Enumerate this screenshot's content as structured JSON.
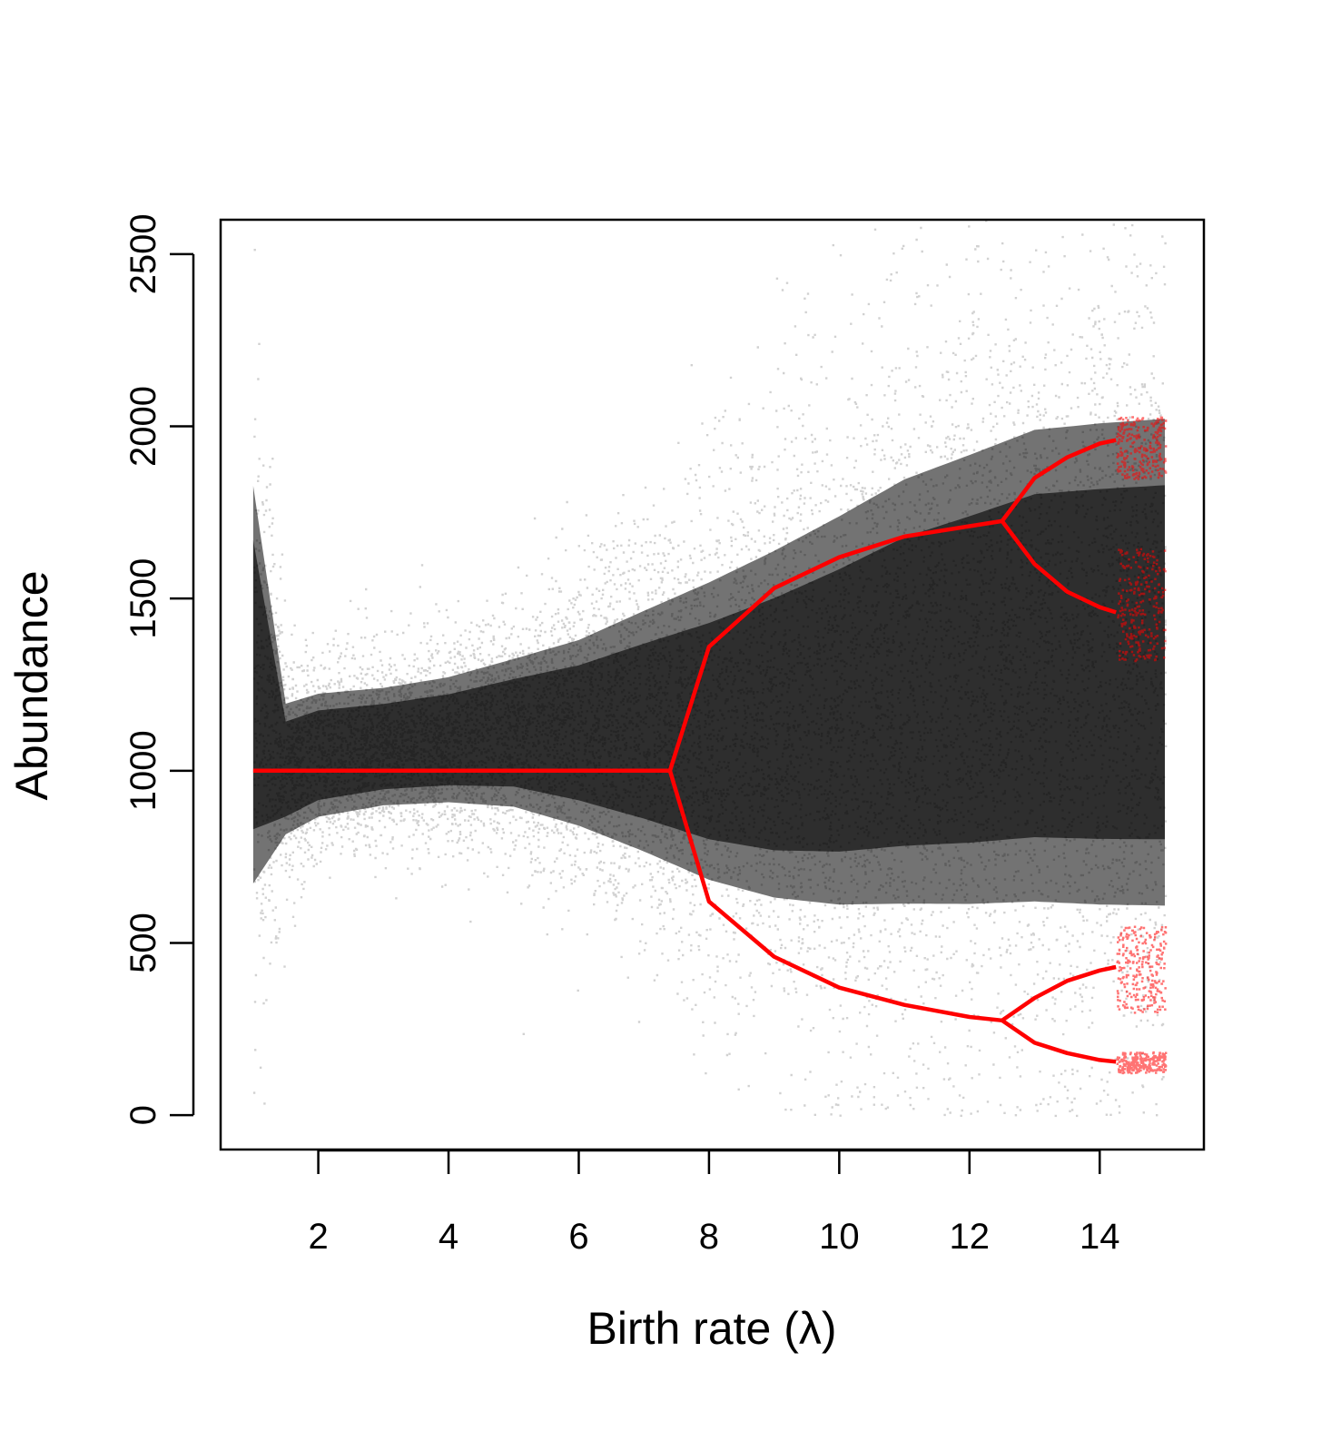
{
  "chart_data": {
    "type": "scatter",
    "title": "",
    "xlabel": "Birth rate (λ)",
    "ylabel": "Abundance",
    "xlim": [
      0.5,
      15.6
    ],
    "ylim": [
      -100,
      2600
    ],
    "x_ticks": [
      2,
      4,
      6,
      8,
      10,
      12,
      14
    ],
    "y_ticks": [
      0,
      500,
      1000,
      1500,
      2000,
      2500
    ],
    "x_tick_labels": [
      "2",
      "4",
      "6",
      "8",
      "10",
      "12",
      "14"
    ],
    "y_tick_labels": [
      "0",
      "500",
      "1000",
      "1500",
      "2000",
      "2500"
    ],
    "grid": false,
    "legend": "none",
    "series": [
      {
        "kind": "stochastic_scatter",
        "color": "#000000",
        "x_range": [
          1,
          15
        ],
        "envelope": {
          "x": [
            1,
            1.5,
            2,
            3,
            4,
            5,
            6,
            7,
            8,
            9,
            10,
            11,
            12,
            13,
            14,
            15
          ],
          "lower": [
            200,
            660,
            720,
            760,
            760,
            720,
            620,
            480,
            330,
            220,
            150,
            110,
            80,
            60,
            40,
            30
          ],
          "upper": [
            2300,
            1350,
            1370,
            1380,
            1420,
            1500,
            1600,
            1750,
            1900,
            2050,
            2200,
            2350,
            2450,
            2550,
            2580,
            2600
          ]
        }
      },
      {
        "kind": "deterministic_bifurcation",
        "color": "#ff0000",
        "fixed_point": {
          "x": [
            1,
            7.4
          ],
          "y": 1000
        },
        "period2": {
          "x": [
            7.4,
            8,
            9,
            10,
            11,
            12,
            12.5
          ],
          "upper": [
            1000,
            1360,
            1530,
            1620,
            1680,
            1710,
            1725
          ],
          "lower": [
            1000,
            620,
            460,
            370,
            320,
            285,
            275
          ]
        },
        "period4": {
          "x": [
            12.5,
            13,
            13.5,
            14,
            14.25
          ],
          "branches": [
            [
              1725,
              1850,
              1910,
              1950,
              1960
            ],
            [
              1725,
              1600,
              1520,
              1475,
              1460
            ],
            [
              275,
              340,
              390,
              420,
              430
            ],
            [
              275,
              210,
              180,
              160,
              155
            ]
          ]
        },
        "chaotic_region": {
          "x": [
            14.25,
            15
          ],
          "y_bands": [
            [
              1850,
              2030
            ],
            [
              1320,
              1650
            ],
            [
              300,
              550
            ],
            [
              125,
              185
            ]
          ]
        }
      }
    ]
  }
}
